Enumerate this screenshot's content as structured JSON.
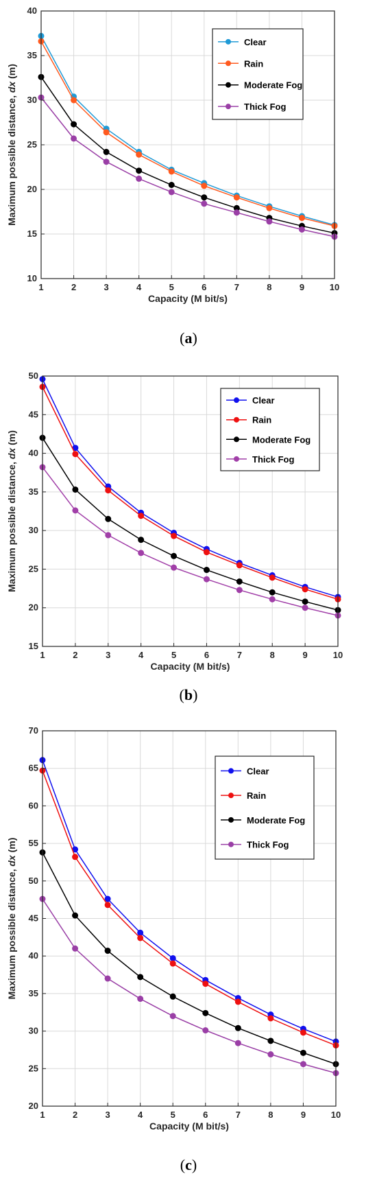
{
  "chart_data": [
    {
      "type": "line",
      "caption": "a",
      "xlabel": "Capacity (M bit/s)",
      "ylabel": "Maximum possible distance,  dx (m)",
      "xlim": [
        1,
        10
      ],
      "ylim": [
        10,
        40
      ],
      "xticks": [
        1,
        2,
        3,
        4,
        5,
        6,
        7,
        8,
        9,
        10
      ],
      "yticks": [
        10,
        15,
        20,
        25,
        30,
        35,
        40
      ],
      "grid": true,
      "legend": "top-right",
      "x": [
        1,
        2,
        3,
        4,
        5,
        6,
        7,
        8,
        9,
        10
      ],
      "series": [
        {
          "name": "Clear",
          "color": "#1f9ad6",
          "values": [
            37.2,
            30.4,
            26.8,
            24.2,
            22.2,
            20.7,
            19.3,
            18.1,
            17.0,
            16.0
          ]
        },
        {
          "name": "Rain",
          "color": "#ff5a1f",
          "values": [
            36.6,
            30.0,
            26.4,
            23.9,
            22.0,
            20.4,
            19.1,
            17.9,
            16.8,
            15.9
          ]
        },
        {
          "name": "Moderate Fog",
          "color": "#000000",
          "values": [
            32.6,
            27.3,
            24.2,
            22.1,
            20.5,
            19.1,
            17.9,
            16.8,
            15.9,
            15.1
          ]
        },
        {
          "name": "Thick Fog",
          "color": "#9a3fa6",
          "values": [
            30.3,
            25.7,
            23.1,
            21.2,
            19.7,
            18.4,
            17.4,
            16.4,
            15.5,
            14.7
          ]
        }
      ]
    },
    {
      "type": "line",
      "caption": "b",
      "xlabel": "Capacity (M bit/s)",
      "ylabel": "Maximum possible distance,  dx (m)",
      "xlim": [
        1,
        10
      ],
      "ylim": [
        15,
        50
      ],
      "xticks": [
        1,
        2,
        3,
        4,
        5,
        6,
        7,
        8,
        9,
        10
      ],
      "yticks": [
        15,
        20,
        25,
        30,
        35,
        40,
        45,
        50
      ],
      "grid": true,
      "legend": "top-right",
      "x": [
        1,
        2,
        3,
        4,
        5,
        6,
        7,
        8,
        9,
        10
      ],
      "series": [
        {
          "name": "Clear",
          "color": "#1010ee",
          "values": [
            49.6,
            40.7,
            35.7,
            32.3,
            29.7,
            27.6,
            25.8,
            24.2,
            22.7,
            21.4
          ]
        },
        {
          "name": "Rain",
          "color": "#ee1010",
          "values": [
            48.6,
            39.9,
            35.2,
            31.9,
            29.3,
            27.2,
            25.5,
            23.9,
            22.4,
            21.1
          ]
        },
        {
          "name": "Moderate Fog",
          "color": "#000000",
          "values": [
            42.0,
            35.3,
            31.5,
            28.8,
            26.7,
            24.9,
            23.4,
            22.0,
            20.8,
            19.7
          ]
        },
        {
          "name": "Thick Fog",
          "color": "#a13fa8",
          "values": [
            38.2,
            32.6,
            29.4,
            27.1,
            25.2,
            23.7,
            22.3,
            21.1,
            20.0,
            19.0
          ]
        }
      ]
    },
    {
      "type": "line",
      "caption": "c",
      "xlabel": "Capacity (M bit/s)",
      "ylabel": "Maximum possible distance,  dx (m)",
      "xlim": [
        1,
        10
      ],
      "ylim": [
        20,
        70
      ],
      "xticks": [
        1,
        2,
        3,
        4,
        5,
        6,
        7,
        8,
        9,
        10
      ],
      "yticks": [
        20,
        25,
        30,
        35,
        40,
        45,
        50,
        55,
        60,
        65,
        70
      ],
      "grid": true,
      "legend": "top-right",
      "x": [
        1,
        2,
        3,
        4,
        5,
        6,
        7,
        8,
        9,
        10
      ],
      "series": [
        {
          "name": "Clear",
          "color": "#1010ee",
          "values": [
            66.1,
            54.2,
            47.6,
            43.1,
            39.7,
            36.8,
            34.4,
            32.2,
            30.3,
            28.6
          ]
        },
        {
          "name": "Rain",
          "color": "#ee1010",
          "values": [
            64.7,
            53.2,
            46.8,
            42.4,
            39.0,
            36.3,
            33.9,
            31.7,
            29.8,
            28.1
          ]
        },
        {
          "name": "Moderate Fog",
          "color": "#000000",
          "values": [
            53.8,
            45.4,
            40.7,
            37.2,
            34.6,
            32.4,
            30.4,
            28.7,
            27.1,
            25.6
          ]
        },
        {
          "name": "Thick Fog",
          "color": "#9a3fa6",
          "values": [
            47.6,
            41.0,
            37.0,
            34.3,
            32.0,
            30.1,
            28.4,
            26.9,
            25.6,
            24.4
          ]
        }
      ]
    }
  ]
}
